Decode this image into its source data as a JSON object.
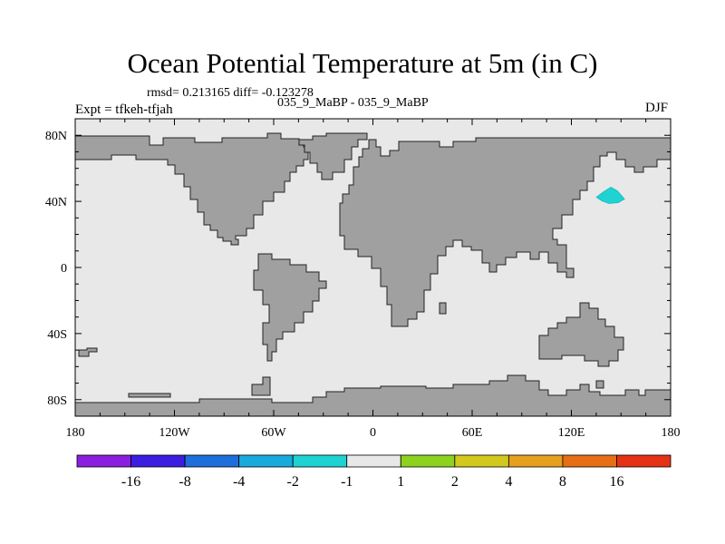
{
  "title": "Ocean Potential Temperature at 5m (in C)",
  "stats": "rmsd= 0.213165 diff= -0.123278",
  "subtitle": "035_9_MaBP - 035_9_MaBP",
  "expt_label": "Expt = tfkeh-tfjah",
  "season": "DJF",
  "map": {
    "lon_range": [
      -180,
      180
    ],
    "lat_range": [
      -90,
      90
    ],
    "x_ticks": [
      {
        "lon": -180,
        "label": "180"
      },
      {
        "lon": -120,
        "label": "120W"
      },
      {
        "lon": -60,
        "label": "60W"
      },
      {
        "lon": 0,
        "label": "0"
      },
      {
        "lon": 60,
        "label": "60E"
      },
      {
        "lon": 120,
        "label": "120E"
      },
      {
        "lon": 180,
        "label": "180"
      }
    ],
    "y_ticks": [
      {
        "lat": 80,
        "label": "80N"
      },
      {
        "lat": 40,
        "label": "40N"
      },
      {
        "lat": 0,
        "label": "0"
      },
      {
        "lat": -40,
        "label": "40S"
      },
      {
        "lat": -80,
        "label": "80S"
      }
    ],
    "ocean_color": "#e8e8e8",
    "land_color": "#a0a0a0",
    "anomaly": {
      "lon": 145,
      "lat": 42,
      "color": "#1fd3d3",
      "category": "-2 to -1"
    }
  },
  "colorbar": {
    "colors": [
      "#8c1ee0",
      "#3c1ee0",
      "#1e6edc",
      "#18aadc",
      "#1ed2d2",
      "#e8e8e8",
      "#8cd21e",
      "#d2c81e",
      "#e6a01e",
      "#e66e14",
      "#e63214"
    ],
    "labels": [
      "-16",
      "-8",
      "-4",
      "-2",
      "-1",
      "1",
      "2",
      "4",
      "8",
      "16"
    ]
  }
}
